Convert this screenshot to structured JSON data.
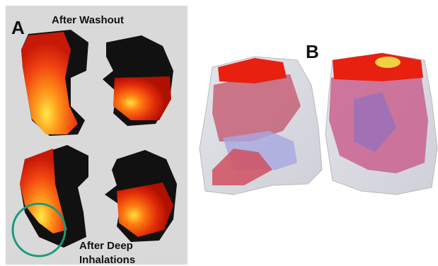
{
  "panel_a": {
    "label": "A",
    "title": "After Washout",
    "caption_lines": [
      "After Deep",
      "Inhalations"
    ]
  },
  "panel_b": {
    "label": "B"
  }
}
